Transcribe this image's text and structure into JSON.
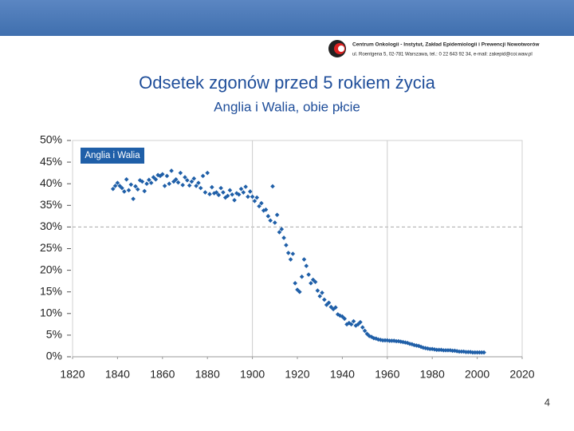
{
  "header": {
    "line1": "Centrum Onkologii - Instytut, Zakład Epidemiologii i Prewencji Nowotworów",
    "line2": "ul. Roentgena 5, 02-781 Warszawa, tel.: 0 22 643 92 34, e-mail: zakepid@coi.waw.pl"
  },
  "page_number": "4",
  "chart_data": {
    "type": "scatter",
    "title": "Odsetek zgonów przed 5 rokiem życia",
    "subtitle": "Anglia i Walia, obie płcie",
    "series": [
      {
        "name": "Anglia i Walia",
        "color": "#1f5fa8",
        "x": [
          1838,
          1839,
          1840,
          1841,
          1842,
          1843,
          1844,
          1845,
          1846,
          1847,
          1848,
          1849,
          1850,
          1851,
          1852,
          1853,
          1854,
          1855,
          1856,
          1857,
          1858,
          1859,
          1860,
          1861,
          1862,
          1863,
          1864,
          1865,
          1866,
          1867,
          1868,
          1869,
          1870,
          1871,
          1872,
          1873,
          1874,
          1875,
          1876,
          1877,
          1878,
          1879,
          1880,
          1881,
          1882,
          1883,
          1884,
          1885,
          1886,
          1887,
          1888,
          1889,
          1890,
          1891,
          1892,
          1893,
          1894,
          1895,
          1896,
          1897,
          1898,
          1899,
          1900,
          1901,
          1902,
          1903,
          1904,
          1905,
          1906,
          1907,
          1908,
          1909,
          1910,
          1911,
          1912,
          1913,
          1914,
          1915,
          1916,
          1917,
          1918,
          1919,
          1920,
          1921,
          1922,
          1923,
          1924,
          1925,
          1926,
          1927,
          1928,
          1929,
          1930,
          1931,
          1932,
          1933,
          1934,
          1935,
          1936,
          1937,
          1938,
          1939,
          1940,
          1941,
          1942,
          1943,
          1944,
          1945,
          1946,
          1947,
          1948,
          1949,
          1950,
          1951,
          1952,
          1953,
          1954,
          1955,
          1956,
          1957,
          1958,
          1959,
          1960,
          1961,
          1962,
          1963,
          1964,
          1965,
          1966,
          1967,
          1968,
          1969,
          1970,
          1971,
          1972,
          1973,
          1974,
          1975,
          1976,
          1977,
          1978,
          1979,
          1980,
          1981,
          1982,
          1983,
          1984,
          1985,
          1986,
          1987,
          1988,
          1989,
          1990,
          1991,
          1992,
          1993,
          1994,
          1995,
          1996,
          1997,
          1998,
          1999,
          2000,
          2001,
          2002,
          2003
        ],
        "values": [
          38.8,
          39.5,
          40.2,
          39.5,
          39.0,
          38.2,
          41.0,
          38.5,
          39.8,
          36.5,
          39.4,
          38.7,
          40.8,
          40.5,
          38.3,
          40.0,
          40.9,
          40.2,
          41.5,
          41.0,
          42.0,
          41.8,
          42.2,
          39.5,
          41.8,
          40.0,
          43.0,
          40.5,
          41.0,
          40.3,
          42.5,
          39.7,
          41.5,
          40.8,
          39.6,
          40.5,
          41.2,
          39.5,
          40.2,
          39.0,
          41.8,
          38.0,
          42.5,
          37.6,
          39.2,
          37.8,
          38.0,
          37.4,
          39.0,
          38.0,
          36.8,
          37.2,
          38.5,
          37.5,
          36.2,
          37.8,
          37.5,
          38.8,
          38.0,
          39.3,
          37.0,
          38.2,
          37.0,
          36.0,
          36.8,
          34.8,
          35.5,
          33.8,
          34.0,
          32.5,
          31.5,
          39.4,
          31.0,
          32.8,
          28.8,
          29.5,
          27.5,
          25.8,
          24.0,
          22.5,
          23.8,
          17.0,
          15.5,
          15.0,
          18.5,
          22.5,
          21.0,
          19.0,
          17.0,
          17.8,
          17.3,
          15.3,
          14.0,
          14.8,
          13.2,
          12.0,
          12.5,
          11.5,
          11.0,
          11.4,
          9.8,
          9.5,
          9.3,
          8.8,
          7.5,
          7.8,
          7.5,
          8.2,
          7.2,
          7.5,
          8.0,
          6.8,
          6.0,
          5.3,
          4.8,
          4.6,
          4.3,
          4.2,
          4.0,
          3.9,
          3.8,
          3.8,
          3.8,
          3.7,
          3.7,
          3.7,
          3.6,
          3.6,
          3.5,
          3.4,
          3.3,
          3.2,
          3.0,
          2.9,
          2.7,
          2.6,
          2.5,
          2.3,
          2.1,
          2.0,
          1.9,
          1.8,
          1.8,
          1.7,
          1.6,
          1.6,
          1.6,
          1.5,
          1.5,
          1.5,
          1.5,
          1.4,
          1.4,
          1.3,
          1.2,
          1.2,
          1.2,
          1.1,
          1.1,
          1.1,
          1.0,
          1.0,
          1.0,
          1.0,
          1.0,
          1.0
        ]
      }
    ],
    "xlim": [
      1820,
      2020
    ],
    "xticks": [
      1820,
      1840,
      1860,
      1880,
      1900,
      1920,
      1940,
      1960,
      1980,
      2000,
      2020
    ],
    "ylim": [
      0,
      50
    ],
    "yticks": [
      {
        "value": 0,
        "label": "0%"
      },
      {
        "value": 5,
        "label": "5%"
      },
      {
        "value": 10,
        "label": "10%"
      },
      {
        "value": 15,
        "label": "15%"
      },
      {
        "value": 20,
        "label": "20%"
      },
      {
        "value": 25,
        "label": "25%"
      },
      {
        "value": 30,
        "label": "30%"
      },
      {
        "value": 35,
        "label": "35%"
      },
      {
        "value": 40,
        "label": "40%"
      },
      {
        "value": 45,
        "label": "45%"
      },
      {
        "value": 50,
        "label": "50%"
      }
    ],
    "x_reference_lines": [
      1900,
      1960
    ],
    "y_reference_lines": [
      30
    ],
    "legend": "top-left"
  }
}
